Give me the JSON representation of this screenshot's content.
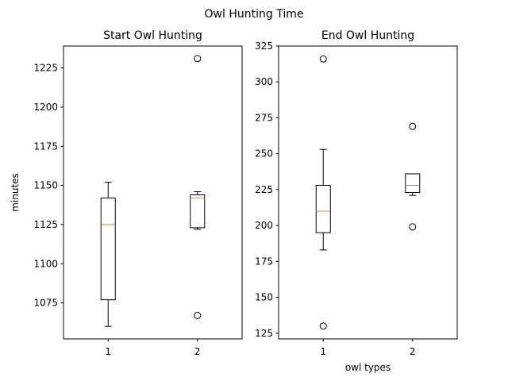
{
  "suptitle": "Owl Hunting Time",
  "colors": {
    "box": "#000000",
    "median": "#ff7f0e",
    "background": "#ffffff"
  },
  "chart_data": [
    {
      "type": "boxplot",
      "title": "Start Owl Hunting",
      "xlabel": "",
      "ylabel": "minutes",
      "categories": [
        "1",
        "2"
      ],
      "ylim": [
        1052,
        1239
      ],
      "yticks": [
        1075,
        1100,
        1125,
        1150,
        1175,
        1200,
        1225
      ],
      "grid": false,
      "boxes": [
        {
          "label": "1",
          "whislo": 1060,
          "q1": 1077,
          "med": 1125,
          "q3": 1142,
          "whishi": 1152,
          "fliers": []
        },
        {
          "label": "2",
          "whislo": 1122,
          "q1": 1123,
          "med": 1142,
          "q3": 1144,
          "whishi": 1146,
          "fliers": [
            1067,
            1231
          ]
        }
      ]
    },
    {
      "type": "boxplot",
      "title": "End Owl Hunting",
      "xlabel": "owl types",
      "ylabel": "",
      "categories": [
        "1",
        "2"
      ],
      "ylim": [
        121,
        325
      ],
      "yticks": [
        125,
        150,
        175,
        200,
        225,
        250,
        275,
        300,
        325
      ],
      "grid": false,
      "boxes": [
        {
          "label": "1",
          "whislo": 183,
          "q1": 195,
          "med": 210,
          "q3": 228,
          "whishi": 253,
          "fliers": [
            130,
            316
          ]
        },
        {
          "label": "2",
          "whislo": 221,
          "q1": 223,
          "med": 228,
          "q3": 236,
          "whishi": 236,
          "fliers": [
            199,
            269
          ]
        }
      ]
    }
  ]
}
